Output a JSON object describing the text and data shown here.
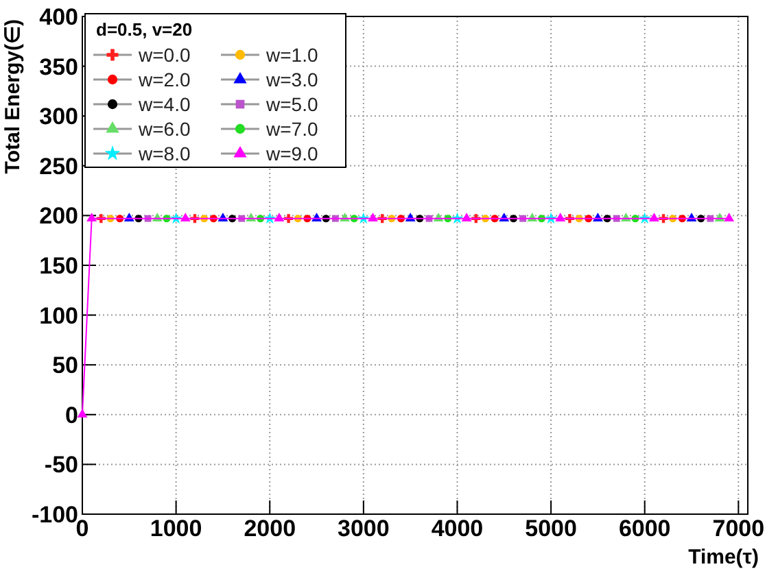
{
  "chart_data": {
    "type": "line",
    "xlabel": "Time(τ)",
    "ylabel": "Total Energy(∈)",
    "legend_title": "d=0.5, v=20",
    "legend": "top left",
    "grid": true,
    "xlim": [
      0,
      7100
    ],
    "xticks": [
      0,
      1000,
      2000,
      3000,
      4000,
      5000,
      6000,
      7000
    ],
    "ylim": [
      -100,
      400
    ],
    "yticks": [
      -100,
      -50,
      0,
      50,
      100,
      150,
      200,
      250,
      300,
      350,
      400
    ],
    "series": [
      {
        "name": "w=0.0",
        "type": "scatter",
        "color": "#ff2020",
        "marker": "cross",
        "x": [
          200,
          1200,
          2200,
          3200,
          4200,
          5200,
          6200
        ],
        "values": [
          197,
          197,
          197,
          197,
          197,
          197,
          197
        ]
      },
      {
        "name": "w=1.0",
        "type": "scatter",
        "color": "#ffbb00",
        "marker": "circle",
        "x": [
          300,
          1300,
          2300,
          3300,
          4300,
          5300,
          6300
        ],
        "values": [
          197,
          197,
          197,
          197,
          197,
          197,
          197
        ]
      },
      {
        "name": "w=2.0",
        "type": "scatter",
        "color": "#ff0000",
        "marker": "circle",
        "x": [
          400,
          1400,
          2400,
          3400,
          4400,
          5400,
          6400
        ],
        "values": [
          197,
          197,
          197,
          197,
          197,
          197,
          197
        ]
      },
      {
        "name": "w=3.0",
        "type": "scatter",
        "color": "#0000ff",
        "marker": "triangle",
        "x": [
          500,
          1500,
          2500,
          3500,
          4500,
          5500,
          6500
        ],
        "values": [
          197,
          197,
          197,
          197,
          197,
          197,
          197
        ]
      },
      {
        "name": "w=4.0",
        "type": "scatter",
        "color": "#000000",
        "marker": "circle",
        "x": [
          600,
          1600,
          2600,
          3600,
          4600,
          5600,
          6600
        ],
        "values": [
          197,
          197,
          197,
          197,
          197,
          197,
          197
        ]
      },
      {
        "name": "w=5.0",
        "type": "scatter",
        "color": "#bb55cc",
        "marker": "square",
        "x": [
          700,
          1700,
          2700,
          3700,
          4700,
          5700,
          6700
        ],
        "values": [
          197,
          197,
          197,
          197,
          197,
          197,
          197
        ]
      },
      {
        "name": "w=6.0",
        "type": "scatter",
        "color": "#66dd66",
        "marker": "triangle",
        "x": [
          800,
          1800,
          2800,
          3800,
          4800,
          5800,
          6800
        ],
        "values": [
          197,
          197,
          197,
          197,
          197,
          197,
          197
        ]
      },
      {
        "name": "w=7.0",
        "type": "scatter",
        "color": "#22dd22",
        "marker": "circle",
        "x": [
          900,
          1900,
          2900,
          3900,
          4900,
          5900
        ],
        "values": [
          197,
          197,
          197,
          197,
          197,
          197
        ]
      },
      {
        "name": "w=8.0",
        "type": "scatter",
        "color": "#00eeff",
        "marker": "star",
        "x": [
          1000,
          2000,
          3000,
          4000,
          5000,
          6000
        ],
        "values": [
          197,
          197,
          197,
          197,
          197,
          197
        ]
      },
      {
        "name": "w=9.0",
        "color": "#ff00ff",
        "marker": "triangle",
        "x": [
          0,
          100,
          1100,
          2100,
          3100,
          4100,
          5100,
          6100,
          6900
        ],
        "values": [
          0,
          197,
          197,
          197,
          197,
          197,
          197,
          197,
          197
        ]
      }
    ]
  }
}
